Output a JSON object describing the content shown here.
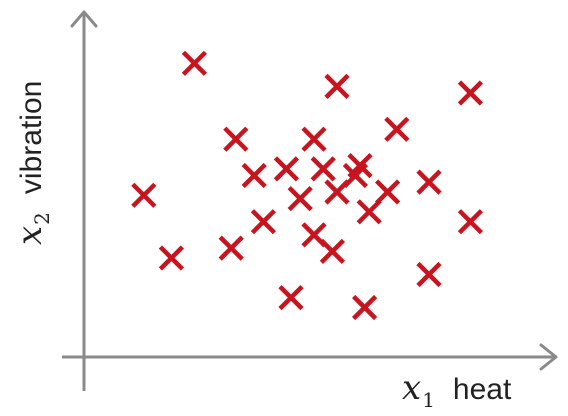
{
  "chart_data": {
    "type": "scatter",
    "title": "",
    "xlabel": {
      "var": "x",
      "sub": "1",
      "word": "heat"
    },
    "ylabel": {
      "var": "x",
      "sub": "2",
      "word": "vibration"
    },
    "xlim": [
      0,
      100
    ],
    "ylim": [
      0,
      100
    ],
    "grid": false,
    "legend": "none",
    "marker": "x",
    "color": "#c8141e",
    "points": [
      {
        "x": 24,
        "y": 89
      },
      {
        "x": 55,
        "y": 82
      },
      {
        "x": 84,
        "y": 80
      },
      {
        "x": 33,
        "y": 66
      },
      {
        "x": 50,
        "y": 66
      },
      {
        "x": 68,
        "y": 69
      },
      {
        "x": 60,
        "y": 58
      },
      {
        "x": 37,
        "y": 55
      },
      {
        "x": 44,
        "y": 57
      },
      {
        "x": 52,
        "y": 57
      },
      {
        "x": 59,
        "y": 55
      },
      {
        "x": 75,
        "y": 53
      },
      {
        "x": 13,
        "y": 49
      },
      {
        "x": 47,
        "y": 48
      },
      {
        "x": 55,
        "y": 50
      },
      {
        "x": 66,
        "y": 50
      },
      {
        "x": 39,
        "y": 41
      },
      {
        "x": 50,
        "y": 37
      },
      {
        "x": 62,
        "y": 44
      },
      {
        "x": 84,
        "y": 41
      },
      {
        "x": 19,
        "y": 30
      },
      {
        "x": 32,
        "y": 33
      },
      {
        "x": 54,
        "y": 32
      },
      {
        "x": 75,
        "y": 25
      },
      {
        "x": 45,
        "y": 18
      },
      {
        "x": 61,
        "y": 15
      }
    ]
  }
}
